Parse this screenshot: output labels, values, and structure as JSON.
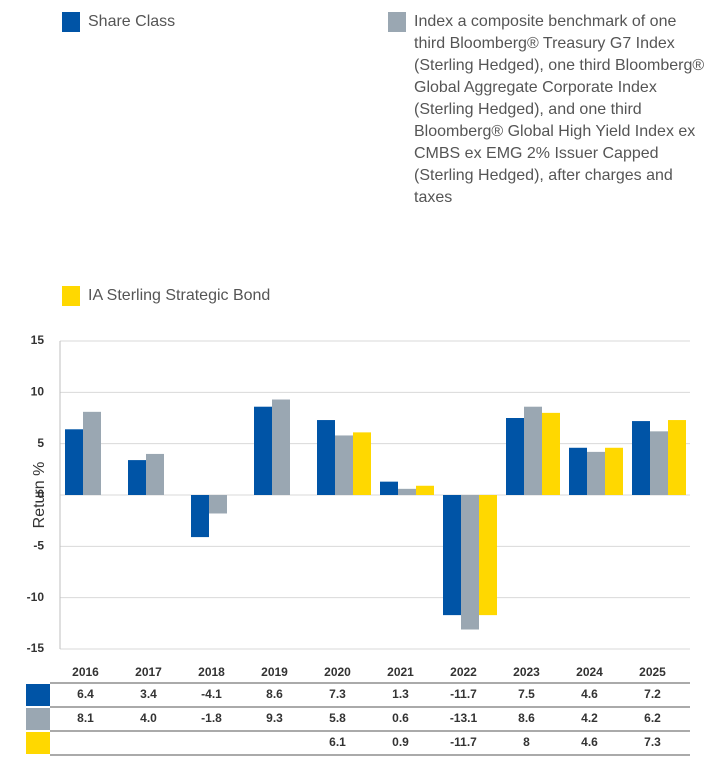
{
  "chart_data": {
    "type": "bar",
    "categories": [
      "2016",
      "2017",
      "2018",
      "2019",
      "2020",
      "2021",
      "2022",
      "2023",
      "2024",
      "2025"
    ],
    "series": [
      {
        "name": "Share Class",
        "color": "#0054a6",
        "values": [
          6.4,
          3.4,
          -4.1,
          8.6,
          7.3,
          1.3,
          -11.7,
          7.5,
          4.6,
          7.2
        ]
      },
      {
        "name": "Index a composite benchmark of one third Bloomberg® Treasury G7 Index (Sterling Hedged), one third Bloomberg® Global Aggregate Corporate Index (Sterling Hedged), and one third Bloomberg® Global High Yield Index ex CMBS ex EMG 2% Issuer Capped (Sterling Hedged), after charges and taxes",
        "color": "#9aa7b2",
        "values": [
          8.1,
          4.0,
          -1.8,
          9.3,
          5.8,
          0.6,
          -13.1,
          8.6,
          4.2,
          6.2
        ],
        "value_labels": [
          "8.1",
          "4.0",
          "-1.8",
          "9.3",
          "5.8",
          "0.6",
          "-13.1",
          "8.6",
          "4.2",
          "6.2"
        ]
      },
      {
        "name": "IA Sterling Strategic Bond",
        "color": "#ffd800",
        "values": [
          null,
          null,
          null,
          null,
          6.1,
          0.9,
          -11.7,
          8.0,
          4.6,
          7.3
        ]
      }
    ],
    "y_label": "Return %",
    "ylim": [
      -15,
      15
    ],
    "yticks": [
      15,
      10,
      5,
      0,
      -5,
      -10,
      -15
    ],
    "grid": true
  }
}
